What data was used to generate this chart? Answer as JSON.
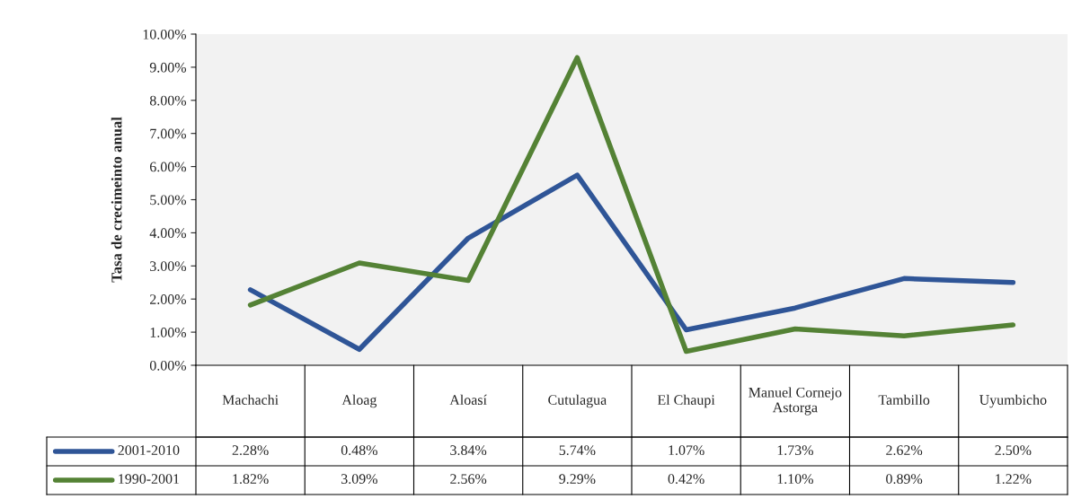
{
  "chart_data": {
    "type": "line",
    "ylabel": "Tasa de crecimeinto anual",
    "categories": [
      "Machachi",
      "Aloag",
      "Aloasí",
      "Cutulagua",
      "El Chaupi",
      "Manuel Cornejo Astorga",
      "Tambillo",
      "Uyumbicho"
    ],
    "series": [
      {
        "name": "2001-2010",
        "color": "#2f5597",
        "values": [
          2.28,
          0.48,
          3.84,
          5.74,
          1.07,
          1.73,
          2.62,
          2.5
        ],
        "value_labels": [
          "2.28%",
          "0.48%",
          "3.84%",
          "5.74%",
          "1.07%",
          "1.73%",
          "2.62%",
          "2.50%"
        ]
      },
      {
        "name": "1990-2001",
        "color": "#548235",
        "values": [
          1.82,
          3.09,
          2.56,
          9.29,
          0.42,
          1.1,
          0.89,
          1.22
        ],
        "value_labels": [
          "1.82%",
          "3.09%",
          "2.56%",
          "9.29%",
          "0.42%",
          "1.10%",
          "0.89%",
          "1.22%"
        ]
      }
    ],
    "ylim": [
      0,
      10
    ],
    "yticks": [
      {
        "value": 0,
        "label": "0.00%"
      },
      {
        "value": 1,
        "label": "1.00%"
      },
      {
        "value": 2,
        "label": "2.00%"
      },
      {
        "value": 3,
        "label": "3.00%"
      },
      {
        "value": 4,
        "label": "4.00%"
      },
      {
        "value": 5,
        "label": "5.00%"
      },
      {
        "value": 6,
        "label": "6.00%"
      },
      {
        "value": 7,
        "label": "7.00%"
      },
      {
        "value": 8,
        "label": "8.00%"
      },
      {
        "value": 9,
        "label": "9.00%"
      },
      {
        "value": 10,
        "label": "10.00%"
      }
    ],
    "grid": false,
    "legend": "bottom left",
    "marker": "none",
    "line_style": "solid",
    "data_labels": true
  }
}
